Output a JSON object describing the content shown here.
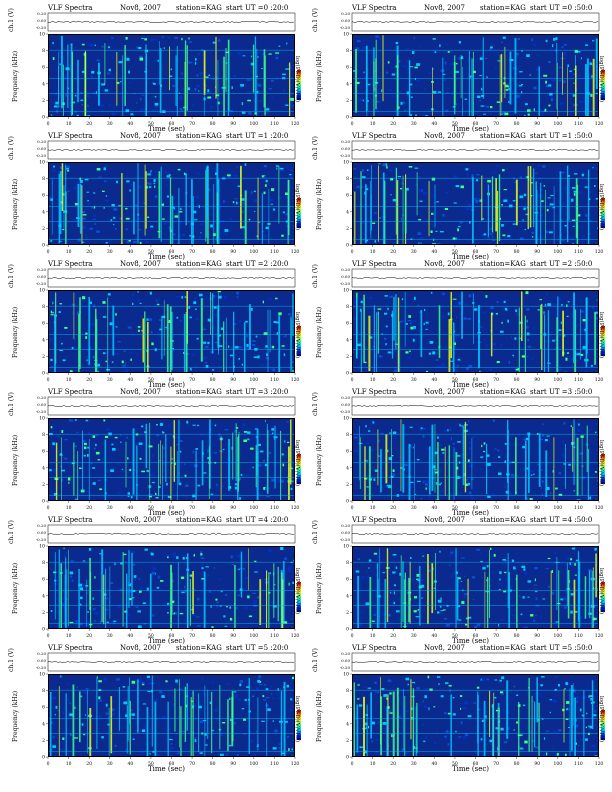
{
  "panel_title": {
    "source": "VLF Spectra",
    "date": "Nov8, 2007",
    "station": "station=KAG"
  },
  "axis": {
    "x_title": "Time (sec)",
    "y_title": "Frequency (kHz)",
    "ch_label": "ch.1 (V)",
    "ch_ticks": [
      "0.20",
      "0.00",
      "-0.20"
    ],
    "colorbar_label": "log(PSD)(V/√Hz)",
    "colorbar_ticks": [
      "-1",
      "-5"
    ]
  },
  "chart_data": [
    {
      "type": "heatmap",
      "start_ut": "start UT =0 :20:0",
      "xlim": [
        0,
        120
      ],
      "ylim": [
        0,
        10
      ],
      "x_ticks": [
        0,
        10,
        20,
        30,
        40,
        50,
        60,
        70,
        80,
        90,
        100,
        110,
        120
      ],
      "y_ticks": [
        0,
        2,
        4,
        6,
        8,
        10
      ],
      "xlabel": "Time (sec)",
      "ylabel": "Frequency (kHz)"
    },
    {
      "type": "heatmap",
      "start_ut": "start UT =0 :50:0",
      "xlim": [
        0,
        120
      ],
      "ylim": [
        0,
        10
      ],
      "x_ticks": [
        0,
        10,
        20,
        30,
        40,
        50,
        60,
        70,
        80,
        90,
        100,
        110,
        120
      ],
      "y_ticks": [
        0,
        2,
        4,
        6,
        8,
        10
      ],
      "xlabel": "Time (sec)",
      "ylabel": "Frequency (kHz)"
    },
    {
      "type": "heatmap",
      "start_ut": "start UT =1 :20:0",
      "xlim": [
        0,
        120
      ],
      "ylim": [
        0,
        10
      ],
      "x_ticks": [
        0,
        10,
        20,
        30,
        40,
        50,
        60,
        70,
        80,
        90,
        100,
        110,
        120
      ],
      "y_ticks": [
        0,
        2,
        4,
        6,
        8,
        10
      ],
      "xlabel": "Time (sec)",
      "ylabel": "Frequency (kHz)"
    },
    {
      "type": "heatmap",
      "start_ut": "start UT =1 :50:0",
      "xlim": [
        0,
        120
      ],
      "ylim": [
        0,
        10
      ],
      "x_ticks": [
        0,
        10,
        20,
        30,
        40,
        50,
        60,
        70,
        80,
        90,
        100,
        110,
        120
      ],
      "y_ticks": [
        0,
        2,
        4,
        6,
        8,
        10
      ],
      "xlabel": "Time (sec)",
      "ylabel": "Frequency (kHz)"
    },
    {
      "type": "heatmap",
      "start_ut": "start UT =2 :20:0",
      "xlim": [
        0,
        120
      ],
      "ylim": [
        0,
        10
      ],
      "x_ticks": [
        0,
        10,
        20,
        30,
        40,
        50,
        60,
        70,
        80,
        90,
        100,
        110,
        120
      ],
      "y_ticks": [
        0,
        2,
        4,
        6,
        8,
        10
      ],
      "xlabel": "Time (sec)",
      "ylabel": "Frequency (kHz)"
    },
    {
      "type": "heatmap",
      "start_ut": "start UT =2 :50:0",
      "xlim": [
        0,
        120
      ],
      "ylim": [
        0,
        10
      ],
      "x_ticks": [
        0,
        10,
        20,
        30,
        40,
        50,
        60,
        70,
        80,
        90,
        100,
        110,
        120
      ],
      "y_ticks": [
        0,
        2,
        4,
        6,
        8,
        10
      ],
      "xlabel": "Time (sec)",
      "ylabel": "Frequency (kHz)"
    },
    {
      "type": "heatmap",
      "start_ut": "start UT =3 :20:0",
      "xlim": [
        0,
        120
      ],
      "ylim": [
        0,
        10
      ],
      "x_ticks": [
        0,
        10,
        20,
        30,
        40,
        50,
        60,
        70,
        80,
        90,
        100,
        110,
        120
      ],
      "y_ticks": [
        0,
        2,
        4,
        6,
        8,
        10
      ],
      "xlabel": "Time (sec)",
      "ylabel": "Frequency (kHz)"
    },
    {
      "type": "heatmap",
      "start_ut": "start UT =3 :50:0",
      "xlim": [
        0,
        120
      ],
      "ylim": [
        0,
        10
      ],
      "x_ticks": [
        0,
        10,
        20,
        30,
        40,
        50,
        60,
        70,
        80,
        90,
        100,
        110,
        120
      ],
      "y_ticks": [
        0,
        2,
        4,
        6,
        8,
        10
      ],
      "xlabel": "Time (sec)",
      "ylabel": "Frequency (kHz)"
    },
    {
      "type": "heatmap",
      "start_ut": "start UT =4 :20:0",
      "xlim": [
        0,
        120
      ],
      "ylim": [
        0,
        10
      ],
      "x_ticks": [
        0,
        10,
        20,
        30,
        40,
        50,
        60,
        70,
        80,
        90,
        100,
        110,
        120
      ],
      "y_ticks": [
        0,
        2,
        4,
        6,
        8,
        10
      ],
      "xlabel": "Time (sec)",
      "ylabel": "Frequency (kHz)"
    },
    {
      "type": "heatmap",
      "start_ut": "start UT =4 :50:0",
      "xlim": [
        0,
        120
      ],
      "ylim": [
        0,
        10
      ],
      "x_ticks": [
        0,
        10,
        20,
        30,
        40,
        50,
        60,
        70,
        80,
        90,
        100,
        110,
        120
      ],
      "y_ticks": [
        0,
        2,
        4,
        6,
        8,
        10
      ],
      "xlabel": "Time (sec)",
      "ylabel": "Frequency (kHz)"
    },
    {
      "type": "heatmap",
      "start_ut": "start UT =5 :20:0",
      "xlim": [
        0,
        120
      ],
      "ylim": [
        0,
        10
      ],
      "x_ticks": [
        0,
        10,
        20,
        30,
        40,
        50,
        60,
        70,
        80,
        90,
        100,
        110,
        120
      ],
      "y_ticks": [
        0,
        2,
        4,
        6,
        8,
        10
      ],
      "xlabel": "Time (sec)",
      "ylabel": "Frequency (kHz)"
    },
    {
      "type": "heatmap",
      "start_ut": "start UT =5 :50:0",
      "xlim": [
        0,
        120
      ],
      "ylim": [
        0,
        10
      ],
      "x_ticks": [
        0,
        10,
        20,
        30,
        40,
        50,
        60,
        70,
        80,
        90,
        100,
        110,
        120
      ],
      "y_ticks": [
        0,
        2,
        4,
        6,
        8,
        10
      ],
      "xlabel": "Time (sec)",
      "ylabel": "Frequency (kHz)"
    }
  ],
  "colors": {
    "background": "#0b2a8f",
    "low": "#0033cc",
    "mid": "#00c8ff",
    "high": "#3cff8c",
    "peak": "#e6ff1a",
    "max": "#ff5a00"
  }
}
